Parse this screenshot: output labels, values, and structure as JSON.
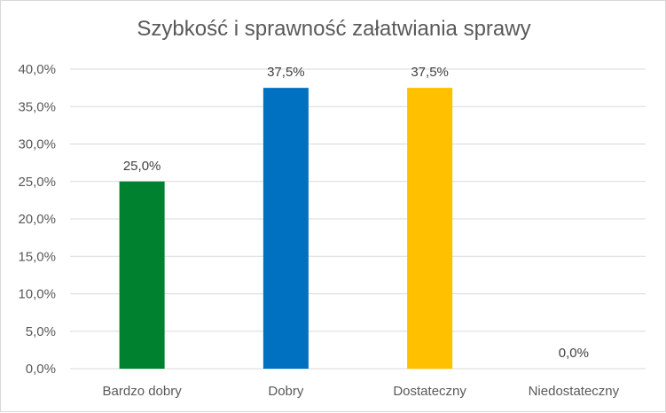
{
  "chart_data": {
    "type": "bar",
    "title": "Szybkość i sprawność załatwiania sprawy",
    "categories": [
      "Bardzo dobry",
      "Dobry",
      "Dostateczny",
      "Niedostateczny"
    ],
    "values": [
      25.0,
      37.5,
      37.5,
      0.0
    ],
    "value_labels": [
      "25,0%",
      "37,5%",
      "37,5%",
      "0,0%"
    ],
    "colors": [
      "#00812f",
      "#0070c0",
      "#ffc000",
      "#a5a5a5"
    ],
    "yticks": [
      0,
      5,
      10,
      15,
      20,
      25,
      30,
      35,
      40
    ],
    "ytick_labels": [
      "0,0%",
      "5,0%",
      "10,0%",
      "15,0%",
      "20,0%",
      "25,0%",
      "30,0%",
      "35,0%",
      "40,0%"
    ],
    "ylim": [
      0,
      40
    ],
    "grid": true,
    "legend": "none"
  }
}
